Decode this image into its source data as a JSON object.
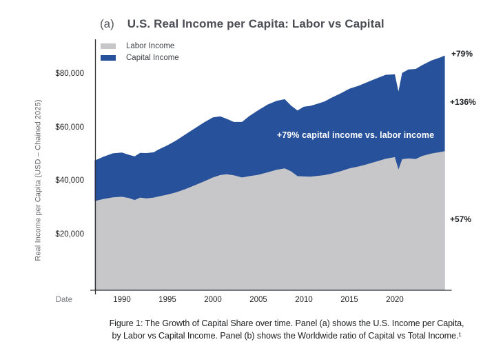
{
  "panel_label": "(a)",
  "title": "U.S. Real Income per Capita: Labor vs Capital",
  "legend": [
    {
      "label": "Labor Income",
      "color": "#c7c7c9"
    },
    {
      "label": "Capital Income",
      "color": "#27519b"
    }
  ],
  "y_axis": {
    "title": "Real Income per Capita (USD – Chained 2025)",
    "ticks": [
      "$80,000",
      "$60,000",
      "$40,000",
      "$20,000"
    ],
    "tick_values": [
      80000,
      60000,
      40000,
      20000
    ]
  },
  "x_axis": {
    "title": "Date",
    "ticks": [
      "1990",
      "1995",
      "2000",
      "2005",
      "2010",
      "2015",
      "2020"
    ]
  },
  "annotations": {
    "total_growth": "+79%",
    "capital_growth": "+136%",
    "labor_growth": "+57%",
    "inside": "+79% capital income vs. labor income"
  },
  "caption": {
    "line1": "Figure 1: The Growth of Capital Share over time. Panel (a) shows the U.S. Income per Capita,",
    "line2": "by Labor vs Capital Income. Panel (b) shows the Worldwide ratio of Capital vs Total Income.¹"
  },
  "chart_data": {
    "type": "area",
    "stacked": true,
    "title": "U.S. Real Income per Capita: Labor vs Capital",
    "xlabel": "Date",
    "ylabel": "Real Income per Capita (USD – Chained 2025)",
    "xlim": [
      1987,
      2025.5
    ],
    "ylim": [
      0,
      93000
    ],
    "grid": false,
    "legend_position": "top-left",
    "x": [
      1987,
      1988,
      1989,
      1990,
      1990.8,
      1991.4,
      1992,
      1992.7,
      1993.5,
      1994,
      1995,
      1996,
      1997,
      1998,
      1999,
      2000,
      2000.8,
      2001.5,
      2002.3,
      2003.2,
      2004,
      2005,
      2006,
      2007,
      2007.9,
      2008.6,
      2009.3,
      2010,
      2010.7,
      2011.5,
      2012.3,
      2013,
      2014,
      2015,
      2016,
      2017,
      2018,
      2019,
      2020,
      2020.4,
      2020.8,
      2021.5,
      2022.3,
      2023,
      2024,
      2025,
      2025.5
    ],
    "series": [
      {
        "name": "Labor Income",
        "color": "#c7c7c9",
        "values": [
          32500,
          33300,
          33900,
          34100,
          33600,
          32900,
          33800,
          33500,
          33800,
          34200,
          34900,
          35800,
          37000,
          38400,
          39800,
          41300,
          42200,
          42500,
          42100,
          41300,
          41800,
          42300,
          43200,
          44200,
          44700,
          43600,
          41800,
          41700,
          41600,
          41900,
          42200,
          42700,
          43600,
          44700,
          45400,
          46300,
          47300,
          48300,
          48900,
          44300,
          48100,
          48400,
          48200,
          49300,
          50200,
          50800,
          51100
        ]
      },
      {
        "name": "Capital Income",
        "color": "#27519b",
        "values": [
          15100,
          15800,
          16400,
          16500,
          16100,
          16300,
          16700,
          16900,
          16900,
          17500,
          18400,
          19400,
          20400,
          21200,
          22000,
          22400,
          21900,
          20700,
          19900,
          20700,
          22400,
          24100,
          25300,
          25700,
          25800,
          24500,
          24500,
          26000,
          26400,
          26900,
          27500,
          28300,
          29000,
          29700,
          30100,
          30600,
          31000,
          31300,
          30900,
          29100,
          32200,
          33200,
          33600,
          33900,
          34700,
          35300,
          35700
        ]
      }
    ]
  }
}
